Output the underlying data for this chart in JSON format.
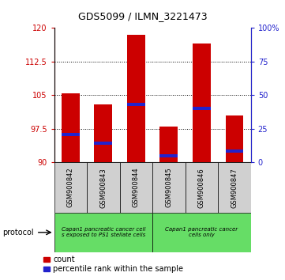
{
  "title": "GDS5099 / ILMN_3221473",
  "samples": [
    "GSM900842",
    "GSM900843",
    "GSM900844",
    "GSM900845",
    "GSM900846",
    "GSM900847"
  ],
  "bar_tops": [
    105.5,
    103.0,
    118.5,
    98.0,
    116.5,
    100.5
  ],
  "bar_base": 90.0,
  "percentile_values": [
    96.2,
    94.3,
    103.0,
    91.5,
    102.0,
    92.5
  ],
  "ylim": [
    90,
    120
  ],
  "yticks_left": [
    90,
    97.5,
    105,
    112.5,
    120
  ],
  "yticks_right": [
    0,
    25,
    50,
    75,
    100
  ],
  "bar_color": "#cc0000",
  "blue_color": "#2222cc",
  "group1_label": "Capan1 pancreatic cancer cell\ns exposed to PS1 stellate cells",
  "group2_label": "Capan1 pancreatic cancer\ncells only",
  "group1_count": 3,
  "group2_count": 3,
  "group_bg": "#66dd66",
  "sample_bg": "#d0d0d0",
  "protocol_label": "protocol",
  "bar_width": 0.55,
  "figure_bg": "#ffffff",
  "title_fontsize": 9,
  "tick_fontsize": 7,
  "label_fontsize": 6,
  "legend_fontsize": 7
}
